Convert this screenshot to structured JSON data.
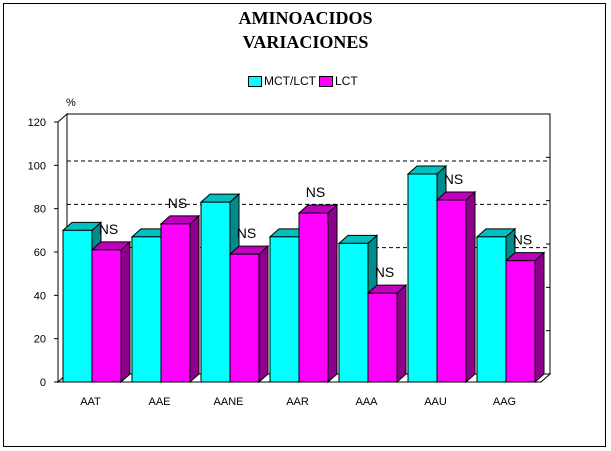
{
  "chart_data": {
    "type": "bar",
    "title": "AMINOACIDOS",
    "subtitle": "VARIACIONES",
    "ylabel": "%",
    "ylim": [
      0,
      120
    ],
    "yticks": [
      0,
      20,
      40,
      60,
      80,
      100,
      120
    ],
    "categories": [
      "AAT",
      "AAE",
      "AANE",
      "AAR",
      "AAA",
      "AAU",
      "AAG"
    ],
    "series": [
      {
        "name": "MCT/LCT",
        "color": "#00FFFF",
        "values": [
          70,
          67,
          83,
          67,
          64,
          96,
          67
        ]
      },
      {
        "name": "LCT",
        "color": "#FF00FF",
        "values": [
          61,
          73,
          59,
          78,
          41,
          84,
          56
        ]
      }
    ],
    "annotations": [
      "NS",
      "NS",
      "NS",
      "NS",
      "NS",
      "NS",
      "NS"
    ],
    "reference_lines": [
      62,
      82,
      102
    ],
    "grid": false,
    "legend_position": "top-center"
  }
}
